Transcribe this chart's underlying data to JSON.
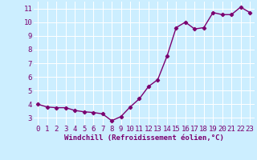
{
  "x": [
    0,
    1,
    2,
    3,
    4,
    5,
    6,
    7,
    8,
    9,
    10,
    11,
    12,
    13,
    14,
    15,
    16,
    17,
    18,
    19,
    20,
    21,
    22,
    23
  ],
  "y": [
    4.0,
    3.8,
    3.75,
    3.75,
    3.55,
    3.45,
    3.4,
    3.3,
    2.8,
    3.1,
    3.8,
    4.4,
    5.3,
    5.8,
    7.5,
    9.6,
    10.0,
    9.5,
    9.6,
    10.7,
    10.55,
    10.55,
    11.1,
    10.7
  ],
  "line_color": "#7B0070",
  "marker": "D",
  "marker_size": 2.2,
  "line_width": 1.0,
  "background_color": "#cceeff",
  "grid_color": "#ffffff",
  "xlabel": "Windchill (Refroidissement éolien,°C)",
  "xlabel_color": "#7B0070",
  "xlabel_fontsize": 6.5,
  "tick_color": "#7B0070",
  "tick_fontsize": 6.5,
  "ylim": [
    2.5,
    11.5
  ],
  "xlim": [
    -0.5,
    23.5
  ],
  "yticks": [
    3,
    4,
    5,
    6,
    7,
    8,
    9,
    10,
    11
  ],
  "xticks": [
    0,
    1,
    2,
    3,
    4,
    5,
    6,
    7,
    8,
    9,
    10,
    11,
    12,
    13,
    14,
    15,
    16,
    17,
    18,
    19,
    20,
    21,
    22,
    23
  ]
}
